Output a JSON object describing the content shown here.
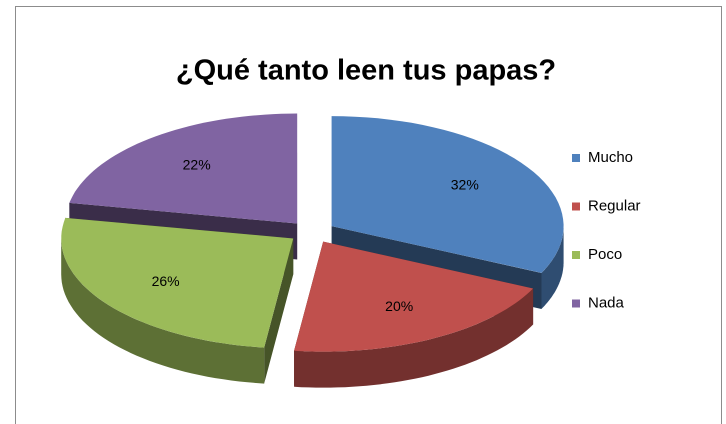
{
  "chart_data": {
    "type": "pie",
    "title": "¿Qué tanto leen tus papas?",
    "categories": [
      "Mucho",
      "Regular",
      "Poco",
      "Nada"
    ],
    "values": [
      32,
      20,
      26,
      22
    ],
    "value_labels": [
      "32%",
      "20%",
      "26%",
      "22%"
    ],
    "colors": [
      "#4f81bd",
      "#c0504d",
      "#9bbb59",
      "#8064a2"
    ],
    "legend": "right"
  }
}
